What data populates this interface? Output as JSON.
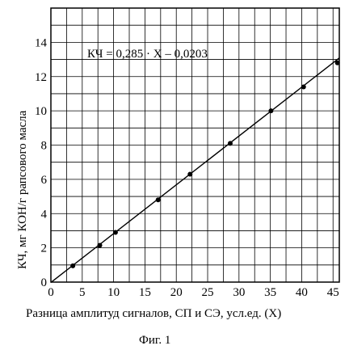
{
  "chart_data": {
    "type": "scatter",
    "equation": "КЧ = 0,285 · X – 0,0203",
    "xlabel": "Разница амплитуд сигналов,  СП и СЭ, усл.ед. (X)",
    "ylabel": "КЧ, мг КОН/г рапсового масла",
    "caption": "Фиг. 1",
    "xlim": [
      0,
      46
    ],
    "ylim": [
      0,
      16
    ],
    "grid": true,
    "x_ticks": [
      0,
      5,
      10,
      15,
      20,
      25,
      30,
      35,
      40,
      45
    ],
    "y_ticks": [
      0,
      2,
      4,
      6,
      8,
      10,
      12,
      14
    ],
    "x_tick_labels": [
      "0",
      "5",
      "10",
      "15",
      "20",
      "25",
      "30",
      "35",
      "40",
      "45"
    ],
    "y_tick_labels": [
      "0",
      "2",
      "4",
      "6",
      "8",
      "10",
      "12",
      "14"
    ],
    "points": [
      {
        "x": 3.5,
        "y": 0.95
      },
      {
        "x": 7.8,
        "y": 2.15
      },
      {
        "x": 10.3,
        "y": 2.9
      },
      {
        "x": 17.1,
        "y": 4.8
      },
      {
        "x": 22.2,
        "y": 6.3
      },
      {
        "x": 28.6,
        "y": 8.1
      },
      {
        "x": 35.1,
        "y": 10.0
      },
      {
        "x": 40.3,
        "y": 11.4
      },
      {
        "x": 45.7,
        "y": 12.8
      }
    ],
    "fit_line": {
      "slope": 0.285,
      "intercept": -0.0203,
      "x_range": [
        0,
        46
      ]
    }
  }
}
